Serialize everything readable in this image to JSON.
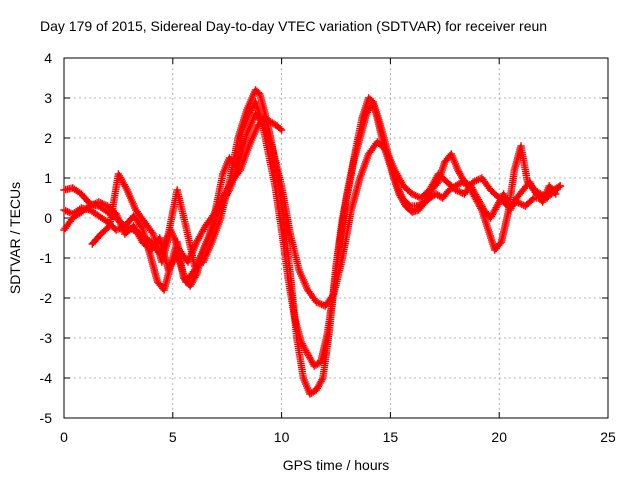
{
  "chart_data": {
    "type": "scatter",
    "title": "Day 179 of 2015, Sidereal Day-to-day VTEC variation (SDTVAR) for receiver reun",
    "xlabel": "GPS time / hours",
    "ylabel": "SDTVAR / TECUs",
    "xlim": [
      0,
      25
    ],
    "ylim": [
      -5,
      4
    ],
    "xticks": [
      0,
      5,
      10,
      15,
      20,
      25
    ],
    "yticks": [
      -5,
      -4,
      -3,
      -2,
      -1,
      0,
      1,
      2,
      3,
      4
    ],
    "xtick_labels": [
      "0",
      "5",
      "10",
      "15",
      "20",
      "25"
    ],
    "ytick_labels": [
      "-5",
      "-4",
      "-3",
      "-2",
      "-1",
      "0",
      "1",
      "2",
      "3",
      "4"
    ],
    "grid": true,
    "marker": "+",
    "color": "#ff0000",
    "series": [
      {
        "name": "track-1",
        "x": [
          0.0,
          0.4,
          0.8,
          1.2,
          1.6,
          2.0,
          2.4,
          2.8,
          3.2,
          3.6,
          4.0,
          4.4,
          4.8,
          5.2,
          5.6,
          6.0,
          6.4,
          6.8,
          7.2,
          7.6,
          8.0,
          8.4,
          8.8,
          9.0,
          9.2,
          9.5,
          9.8,
          10.1,
          10.4,
          10.7,
          11.0,
          11.3,
          11.6,
          11.9,
          12.2,
          12.5,
          12.8,
          13.1,
          13.4,
          13.7,
          14.0,
          14.2,
          14.4,
          14.7,
          15.0,
          15.3,
          15.6,
          15.9,
          16.2,
          16.5,
          16.8,
          17.1,
          17.4,
          17.7,
          18.0,
          18.3,
          18.6,
          18.9,
          19.2,
          19.5,
          19.8,
          20.1,
          20.4,
          20.7,
          21.0,
          21.3,
          21.6,
          21.9,
          22.2,
          22.5,
          22.8
        ],
        "y": [
          0.7,
          0.75,
          0.6,
          0.35,
          0.3,
          0.15,
          0.0,
          -0.2,
          -0.3,
          -0.45,
          -0.6,
          -0.9,
          -0.4,
          0.7,
          -0.2,
          -1.2,
          -1.1,
          -0.6,
          0.0,
          0.9,
          2.0,
          2.7,
          3.2,
          3.1,
          2.7,
          2.0,
          1.1,
          0.0,
          -1.4,
          -3.0,
          -4.0,
          -4.4,
          -4.3,
          -4.0,
          -2.8,
          -1.2,
          0.0,
          0.8,
          1.7,
          2.5,
          3.0,
          2.9,
          2.5,
          1.8,
          1.3,
          0.8,
          0.45,
          0.3,
          0.3,
          0.35,
          0.5,
          0.6,
          0.5,
          0.7,
          0.8,
          0.9,
          0.8,
          0.5,
          0.2,
          -0.3,
          -0.8,
          -0.6,
          0.1,
          1.2,
          1.8,
          0.9,
          0.7,
          0.6,
          0.5,
          0.7,
          0.8
        ]
      },
      {
        "name": "track-2",
        "x": [
          0.0,
          0.4,
          0.8,
          1.2,
          1.6,
          2.0,
          2.4,
          2.8,
          3.2,
          3.6,
          4.0,
          4.3,
          4.6,
          4.9,
          5.2,
          5.5,
          5.8,
          6.1,
          6.4,
          6.7,
          7.0,
          7.3,
          7.6,
          7.9,
          8.2,
          8.5,
          8.8,
          9.1,
          9.4,
          9.7,
          10.0,
          10.3,
          10.6,
          10.9,
          11.2,
          11.5,
          11.8,
          12.1,
          12.4,
          12.7,
          13.0,
          13.3,
          13.6,
          13.9,
          14.2,
          14.5,
          14.8,
          15.1,
          15.4,
          15.7,
          16.0,
          16.3,
          16.6,
          16.9,
          17.2,
          17.5,
          17.8,
          18.1,
          18.4,
          18.7,
          19.0,
          19.3,
          19.6,
          19.9,
          20.2,
          20.5,
          20.8,
          21.1,
          21.4,
          21.7,
          22.0,
          22.3,
          22.6
        ],
        "y": [
          0.2,
          0.1,
          0.25,
          0.2,
          0.05,
          -0.1,
          -0.3,
          -0.2,
          0.05,
          -0.25,
          -1.0,
          -1.6,
          -1.8,
          -1.2,
          -0.6,
          -1.5,
          -1.7,
          -1.4,
          -0.8,
          -0.4,
          0.3,
          1.1,
          1.5,
          1.3,
          2.2,
          2.6,
          2.9,
          2.4,
          1.6,
          0.8,
          -0.3,
          -1.5,
          -2.5,
          -3.1,
          -3.4,
          -3.7,
          -3.6,
          -2.9,
          -1.8,
          -0.5,
          0.6,
          1.4,
          2.0,
          2.6,
          2.9,
          2.4,
          1.8,
          1.1,
          0.6,
          0.3,
          0.15,
          0.2,
          0.4,
          0.7,
          0.9,
          1.4,
          1.6,
          1.2,
          0.9,
          0.8,
          0.5,
          0.2,
          0.0,
          0.3,
          0.6,
          0.2,
          0.5,
          0.7,
          0.9,
          0.6,
          0.4,
          0.8,
          0.6
        ]
      },
      {
        "name": "track-3",
        "x": [
          0.0,
          0.4,
          0.8,
          1.2,
          1.6,
          2.0,
          2.4,
          2.8,
          3.2,
          3.6,
          4.0,
          4.4,
          4.8,
          5.2,
          5.6,
          6.0,
          6.4,
          6.8,
          7.2,
          7.6,
          8.0,
          8.4,
          8.8,
          9.2,
          9.6,
          10.0,
          10.4,
          10.8,
          11.2,
          11.6,
          12.0,
          12.4,
          12.8,
          13.2,
          13.6,
          14.0,
          14.4,
          14.8,
          15.2,
          15.6,
          16.0,
          16.4,
          16.8,
          17.2,
          17.6,
          18.0,
          18.4,
          18.8,
          19.2,
          19.6,
          20.0,
          20.4,
          20.8,
          21.2,
          21.6,
          22.0,
          22.4,
          22.8
        ],
        "y": [
          -0.3,
          0.0,
          0.15,
          0.3,
          0.4,
          0.3,
          0.1,
          -0.4,
          -0.2,
          -0.6,
          -0.8,
          -0.5,
          -1.3,
          -0.9,
          -1.6,
          -1.3,
          -0.8,
          -0.3,
          0.3,
          0.7,
          1.3,
          2.1,
          2.6,
          2.3,
          1.7,
          0.8,
          -0.4,
          -1.3,
          -1.8,
          -2.1,
          -2.2,
          -1.9,
          -1.0,
          0.2,
          1.0,
          1.6,
          1.9,
          1.7,
          1.2,
          0.8,
          0.6,
          0.5,
          0.7,
          1.1,
          0.9,
          0.7,
          0.6,
          0.9,
          1.0,
          0.7,
          0.5,
          0.3,
          0.4,
          0.3,
          0.5,
          0.5,
          0.6,
          0.8
        ]
      },
      {
        "name": "track-4",
        "x": [
          1.3,
          1.7,
          2.1,
          2.5,
          2.9,
          3.3,
          3.7,
          4.1,
          4.5,
          4.9,
          5.3,
          5.7,
          6.1,
          6.5,
          6.9,
          7.3,
          7.7,
          8.1,
          8.5,
          8.9,
          9.2,
          9.5,
          9.8,
          10.0
        ],
        "y": [
          -0.65,
          -0.4,
          -0.2,
          1.1,
          0.7,
          0.2,
          -0.1,
          -0.4,
          -1.1,
          -0.3,
          -0.8,
          -1.1,
          -0.6,
          -0.2,
          0.1,
          0.5,
          0.9,
          1.2,
          1.8,
          2.3,
          2.5,
          2.4,
          2.3,
          2.2
        ]
      }
    ]
  }
}
